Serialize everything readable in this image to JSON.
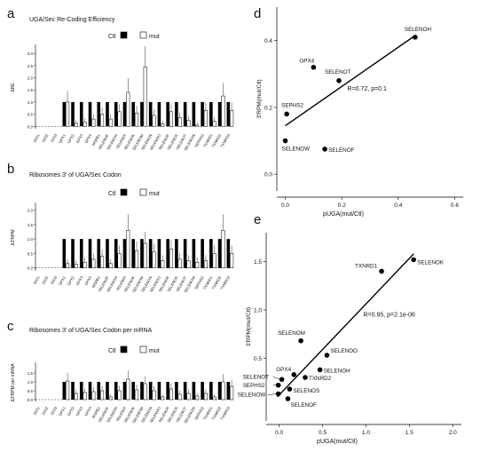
{
  "categories": [
    "DIO1",
    "DIO2",
    "DIO3",
    "GPX1",
    "GPX2",
    "GPX3",
    "GPX4",
    "MSRB1",
    "SELENOF",
    "SELENOH",
    "SELENOI",
    "SELENOK",
    "SELENOM",
    "SELENON",
    "SELENOO",
    "SELENOP",
    "SELENOS",
    "SELENOT",
    "SELENOW",
    "SEPHS2",
    "TXNRD1",
    "TXNRD2",
    "TXNRD3"
  ],
  "legend": {
    "ctl": "Ctl",
    "mut": "mut"
  },
  "colors": {
    "ctl": "#000000",
    "mut": "#ffffff",
    "stroke": "#000000"
  },
  "chart_data": [
    {
      "panel": "a",
      "type": "bar",
      "title": "UGA/Sec Re-Coding Efficiency",
      "ylabel": "ΔRE",
      "ylim": [
        -0.1,
        3.3
      ],
      "yticks": [
        0,
        0.5,
        1,
        1.5,
        2,
        2.5,
        3
      ],
      "yticklabels": [
        "0.0",
        "0.5",
        "1.0",
        "1.5",
        "2.0",
        "2.5",
        "3.0"
      ],
      "series": [
        {
          "name": "Ctl",
          "values": [
            0,
            0,
            0,
            1,
            1,
            1,
            1,
            1,
            1,
            1,
            1,
            1,
            1,
            1,
            1,
            1,
            1,
            1,
            1,
            1,
            1,
            1,
            1
          ]
        },
        {
          "name": "mut",
          "values": [
            0,
            0,
            0,
            1,
            0.12,
            0.18,
            0.3,
            0.5,
            0.3,
            0.6,
            1.4,
            0.55,
            2.45,
            0.45,
            0.1,
            0.6,
            0.35,
            0.25,
            0.05,
            0.65,
            0.2,
            1.25,
            0.65
          ]
        }
      ]
    },
    {
      "panel": "b",
      "type": "bar",
      "title": "Ribosomes 3' of UGA/Sec Codon",
      "ylabel": "Δ3'RPM",
      "ylim": [
        -0.1,
        2.2
      ],
      "yticks": [
        0,
        0.5,
        1,
        1.5,
        2
      ],
      "yticklabels": [
        "0.0",
        "0.5",
        "1.0",
        "1.5",
        "2.0"
      ],
      "series": [
        {
          "name": "Ctl",
          "values": [
            0,
            0,
            0,
            1,
            1,
            1,
            1,
            1,
            1,
            1,
            1,
            1,
            1,
            1,
            1,
            1,
            1,
            1,
            1,
            1,
            1,
            1,
            1
          ]
        },
        {
          "name": "mut",
          "values": [
            0,
            0,
            0,
            0.15,
            0.12,
            0.2,
            0.3,
            0.4,
            0.15,
            0.5,
            1.3,
            0.6,
            0.85,
            0.55,
            0.25,
            0.65,
            0.3,
            0.25,
            0.2,
            0.25,
            0.5,
            1.3,
            0.5
          ]
        }
      ]
    },
    {
      "panel": "c",
      "type": "bar",
      "title": "Ribosomes 3' of UGA/Sec Codon per mRNA",
      "ylabel": "Δ3'RPM per mRNA",
      "ylim": [
        -0.1,
        2.0
      ],
      "yticks": [
        0,
        0.5,
        1,
        1.5
      ],
      "yticklabels": [
        "0.0",
        "0.5",
        "1.0",
        "1.5"
      ],
      "series": [
        {
          "name": "Ctl",
          "values": [
            0,
            0,
            0,
            1,
            1,
            1,
            1,
            1,
            1,
            1,
            1,
            1,
            1,
            1,
            1,
            1,
            1,
            1,
            1,
            1,
            1,
            1,
            1
          ]
        },
        {
          "name": "mut",
          "values": [
            0,
            0,
            0,
            1.05,
            0.35,
            0.4,
            0.45,
            0.5,
            0.15,
            0.5,
            1.15,
            0.55,
            0.9,
            0.5,
            0.15,
            0.6,
            0.3,
            0.35,
            0.2,
            0.35,
            0.15,
            1.0,
            0.75
          ]
        }
      ]
    },
    {
      "panel": "d",
      "type": "scatter",
      "xlabel": "pUGA(mut/Ctl)",
      "ylabel": "3'RPM(mut/Ctl)",
      "xlim": [
        -0.03,
        0.63
      ],
      "ylim": [
        -0.05,
        0.5
      ],
      "xticks": [
        0,
        0.2,
        0.4,
        0.6
      ],
      "yticks": [
        0,
        0.2,
        0.4
      ],
      "xticklabels": [
        "0.0",
        "0.2",
        "0.4",
        "0.6"
      ],
      "yticklabels": [
        "0.0",
        "0.2",
        "0.4"
      ],
      "annotation": "R=0.72, p=0.1",
      "points": [
        {
          "label": "SELENOH",
          "x": 0.46,
          "y": 0.41
        },
        {
          "label": "GPX4",
          "x": 0.1,
          "y": 0.32
        },
        {
          "label": "SELENOT",
          "x": 0.19,
          "y": 0.28
        },
        {
          "label": "SEPHS2",
          "x": 0.005,
          "y": 0.18
        },
        {
          "label": "SELENOW",
          "x": 0.0,
          "y": 0.1
        },
        {
          "label": "SELENOF",
          "x": 0.14,
          "y": 0.075
        }
      ],
      "fit": {
        "x": [
          0.0,
          0.46
        ],
        "y": [
          0.145,
          0.415
        ]
      }
    },
    {
      "panel": "e",
      "type": "scatter",
      "xlabel": "pUGA(mut/Ctl)",
      "ylabel": "3'RPM(mut/Ctl)",
      "xlim": [
        -0.15,
        2.1
      ],
      "ylim": [
        -0.15,
        1.8
      ],
      "xticks": [
        0,
        0.5,
        1,
        1.5,
        2
      ],
      "yticks": [
        0.5,
        1,
        1.5
      ],
      "xticklabels": [
        "0.0",
        "0.5",
        "1.0",
        "1.5",
        "2.0"
      ],
      "yticklabels": [
        "0.5",
        "1.0",
        "1.5"
      ],
      "annotation": "R=0.95, p=2.1e-06",
      "points": [
        {
          "label": "SELENOK",
          "x": 1.55,
          "y": 1.52
        },
        {
          "label": "TXNRD1",
          "x": 1.18,
          "y": 1.4
        },
        {
          "label": "SELENOM",
          "x": 0.25,
          "y": 0.68
        },
        {
          "label": "SELENOO",
          "x": 0.55,
          "y": 0.53
        },
        {
          "label": "SELENOH",
          "x": 0.47,
          "y": 0.38
        },
        {
          "label": "TXNRD2",
          "x": 0.3,
          "y": 0.3
        },
        {
          "label": "GPX4",
          "x": 0.17,
          "y": 0.33
        },
        {
          "label": "SELENOT",
          "x": 0.03,
          "y": 0.28
        },
        {
          "label": "SEPHS2",
          "x": -0.01,
          "y": 0.22
        },
        {
          "label": "SELENOS",
          "x": 0.12,
          "y": 0.18
        },
        {
          "label": "SELENOW",
          "x": -0.01,
          "y": 0.13
        },
        {
          "label": "SELENOF",
          "x": 0.1,
          "y": 0.08
        }
      ],
      "fit": {
        "x": [
          -0.02,
          1.55
        ],
        "y": [
          0.1,
          1.58
        ]
      }
    }
  ]
}
